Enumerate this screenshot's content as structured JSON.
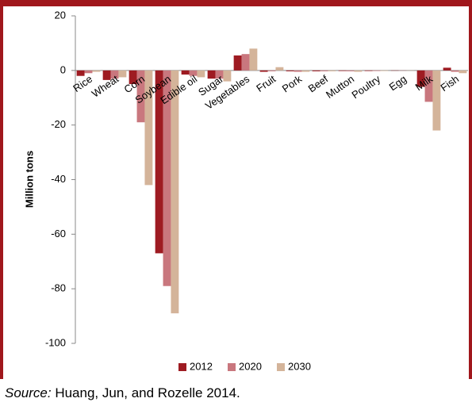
{
  "chart_data": {
    "type": "bar",
    "categories": [
      "Rice",
      "Wheat",
      "Corn",
      "Soybean",
      "Edible oil",
      "Sugar",
      "Vegetables",
      "Fruit",
      "Pork",
      "Beef",
      "Mutton",
      "Poultry",
      "Egg",
      "Milk",
      "Fish"
    ],
    "series": [
      {
        "name": "2012",
        "color": "#9e1b22",
        "values": [
          -2,
          -3.5,
          -5,
          -67,
          -1.5,
          -3,
          5.5,
          -0.5,
          -0.3,
          -0.3,
          -0.2,
          -0.2,
          -0.1,
          -6,
          1
        ]
      },
      {
        "name": "2020",
        "color": "#c9777e",
        "values": [
          -1,
          -3,
          -19,
          -79,
          -2,
          -3,
          6,
          -0.3,
          -0.5,
          -0.3,
          -0.3,
          -0.2,
          -0.1,
          -11.5,
          -0.5
        ]
      },
      {
        "name": "2030",
        "color": "#d4b49a",
        "values": [
          -0.5,
          -2.5,
          -42,
          -89,
          -2.5,
          -4,
          8,
          1.2,
          -0.5,
          -0.3,
          -0.5,
          -0.2,
          -0.1,
          -22,
          -1
        ]
      }
    ],
    "y_label": "Million tons",
    "ylim": [
      -100,
      20
    ],
    "yticks": [
      -100,
      -80,
      -60,
      -40,
      -20,
      0,
      20
    ],
    "grid": false,
    "legend": "bottom",
    "source_label": "Source:",
    "source": "Huang, Jun, and Rozelle 2014."
  }
}
